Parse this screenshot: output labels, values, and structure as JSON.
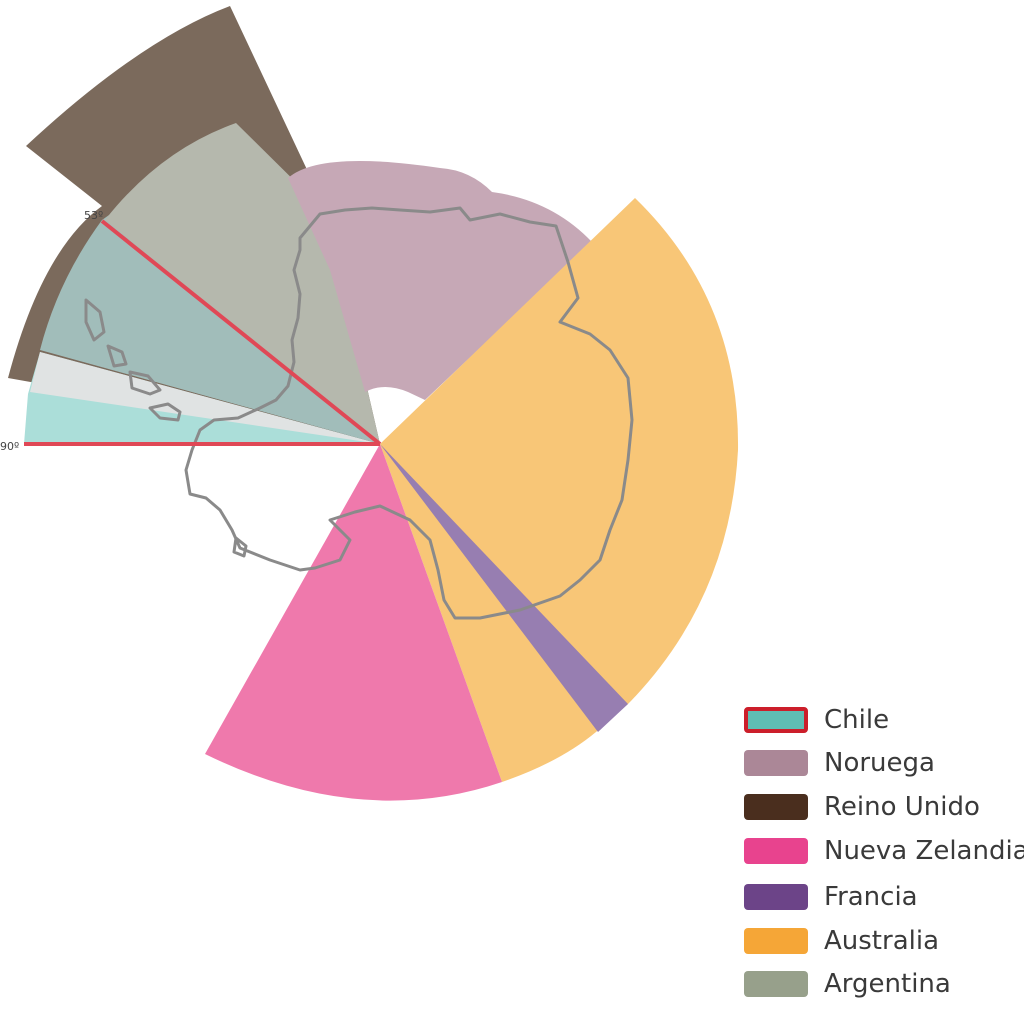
{
  "legend": {
    "items": [
      {
        "label": "Chile",
        "color": "#5fbdb3",
        "border": "#cc1e2a",
        "highlighted": true
      },
      {
        "label": "Noruega",
        "color": "#ab8797"
      },
      {
        "label": "Reino Unido",
        "color": "#4a2e1e"
      },
      {
        "label": "Nueva Zelandia",
        "color": "#e8438e"
      },
      {
        "label": "Francia",
        "color": "#6c4488"
      },
      {
        "label": "Australia",
        "color": "#f5a637"
      },
      {
        "label": "Argentina",
        "color": "#97a08b"
      }
    ]
  },
  "angle_labels": {
    "a53": "53º",
    "a90": "90º"
  },
  "colors": {
    "chile_wedge": "#abded9",
    "overlap_white": "#e0e3e3",
    "uk_wedge": "#7b6a5c",
    "argentina_wedge": "#b5b8ad",
    "argentina_chile_overlap": "#a1bdba",
    "norway_wedge": "#c6a8b6",
    "australia_wedge": "#f8c677",
    "france_wedge": "#977eb1",
    "nz_wedge": "#ef79ac",
    "chile_limit_line": "#e04856",
    "coastline": "#8a8a8a"
  }
}
